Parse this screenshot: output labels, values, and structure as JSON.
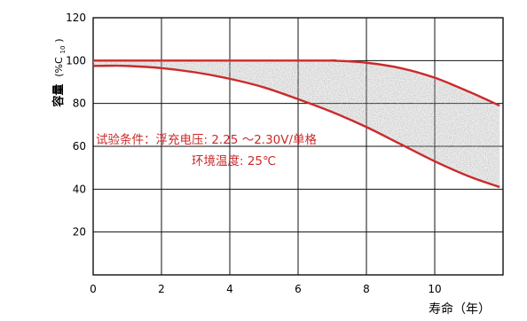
{
  "chart_data": {
    "type": "area",
    "xlabel": "寿命（年）",
    "ylabel": "容量",
    "ylabel_unit": "(%C",
    "ylabel_unit_sub": "10",
    "ylabel_unit_close": ")",
    "xlim": [
      0,
      12
    ],
    "ylim": [
      0,
      120
    ],
    "xticks": [
      0,
      2,
      4,
      6,
      8,
      10
    ],
    "yticks": [
      20,
      40,
      60,
      80,
      100,
      120
    ],
    "grid": true,
    "annotations": [
      "试验条件：浮充电压: 2.25 ～2.30V/单格",
      "环境温度: 25℃"
    ],
    "colors": {
      "curve": "#cc2a2a",
      "annotation": "#cc2a2a",
      "grid": "#111111",
      "fill": "#9a9a9a"
    },
    "series": [
      {
        "x": [
          0,
          0.5,
          1,
          2,
          3,
          4,
          5,
          6,
          7,
          8,
          9,
          10,
          11,
          11.9
        ],
        "y": [
          97.5,
          97.6,
          97.5,
          96.5,
          94.5,
          91.5,
          87.5,
          82,
          76,
          69,
          61,
          53,
          46,
          41
        ]
      },
      {
        "x": [
          0,
          6.5,
          7,
          8,
          9,
          10,
          11,
          11.9
        ],
        "y": [
          100,
          100,
          100,
          99,
          96.5,
          92,
          85.5,
          79
        ]
      }
    ]
  }
}
